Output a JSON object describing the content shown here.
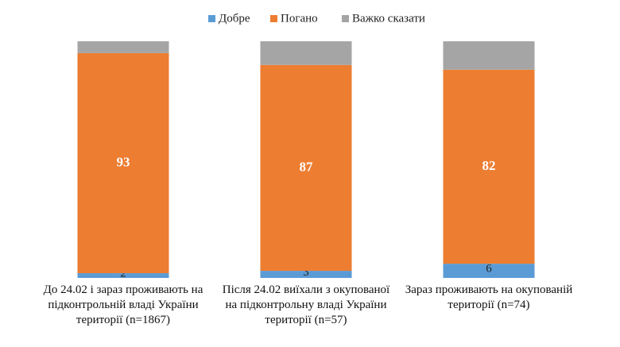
{
  "chart_data": {
    "type": "stacked_bar",
    "categories": [
      "До 24.02 і зараз проживають на підконтрольній владі України території (n=1867)",
      "Після 24.02 виїхали з окупованої на підконтрольну владі України території (n=57)",
      "Зараз проживають на окупованій території (n=74)"
    ],
    "series": [
      {
        "name": "Добре",
        "color": "#5b9bd5",
        "values": [
          2,
          3,
          6
        ],
        "data_labels": true
      },
      {
        "name": "Погано",
        "color": "#ed7d31",
        "values": [
          93,
          87,
          82
        ],
        "data_labels": true
      },
      {
        "name": "Важко сказати",
        "color": "#a5a5a5",
        "values": [
          5,
          10,
          12
        ],
        "data_labels": false
      }
    ],
    "ylim": [
      0,
      100
    ],
    "legend": "top"
  }
}
